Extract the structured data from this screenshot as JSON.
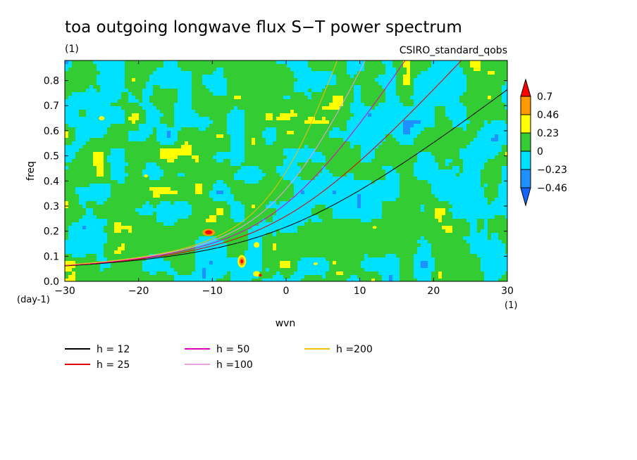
{
  "chart_data": {
    "type": "heatmap",
    "title": "toa outgoing longwave flux S−T power spectrum",
    "subtitle_left": "(1)",
    "subtitle_right": "CSIRO_standard_qobs",
    "xlabel": "wvn",
    "ylabel": "freq",
    "x_unit": "(1)",
    "y_unit": "(day-1)",
    "xlim": [
      -30,
      30
    ],
    "ylim": [
      0,
      0.88
    ],
    "x_ticks": [
      "−30",
      "−20",
      "−10",
      "0",
      "10",
      "20",
      "30"
    ],
    "x_tick_values": [
      -30,
      -20,
      -10,
      0,
      10,
      20,
      30
    ],
    "y_ticks": [
      "0.0",
      "0.1",
      "0.2",
      "0.3",
      "0.4",
      "0.5",
      "0.6",
      "0.7",
      "0.8"
    ],
    "y_tick_values": [
      0,
      0.1,
      0.2,
      0.3,
      0.4,
      0.5,
      0.6,
      0.7,
      0.8
    ],
    "colorbar": {
      "labels": [
        "0.7",
        "0.46",
        "0.23",
        "0",
        "−0.23",
        "−0.46"
      ],
      "levels": [
        0.7,
        0.46,
        0.23,
        0,
        -0.23,
        -0.46
      ],
      "colors": [
        "#ff0000",
        "#ff9900",
        "#ffff00",
        "#33cc33",
        "#00e0ff",
        "#1e90ff",
        "#1464ff"
      ]
    },
    "series": [
      {
        "name": "h = 12",
        "h": 12,
        "color": "#000000"
      },
      {
        "name": "h = 25",
        "h": 25,
        "color": "#e00000"
      },
      {
        "name": "h = 50",
        "h": 50,
        "color": "#e000c0"
      },
      {
        "name": "h =100",
        "h": 100,
        "color": "#e8a0e0"
      },
      {
        "name": "h =200",
        "h": 200,
        "color": "#f0c000"
      }
    ]
  }
}
